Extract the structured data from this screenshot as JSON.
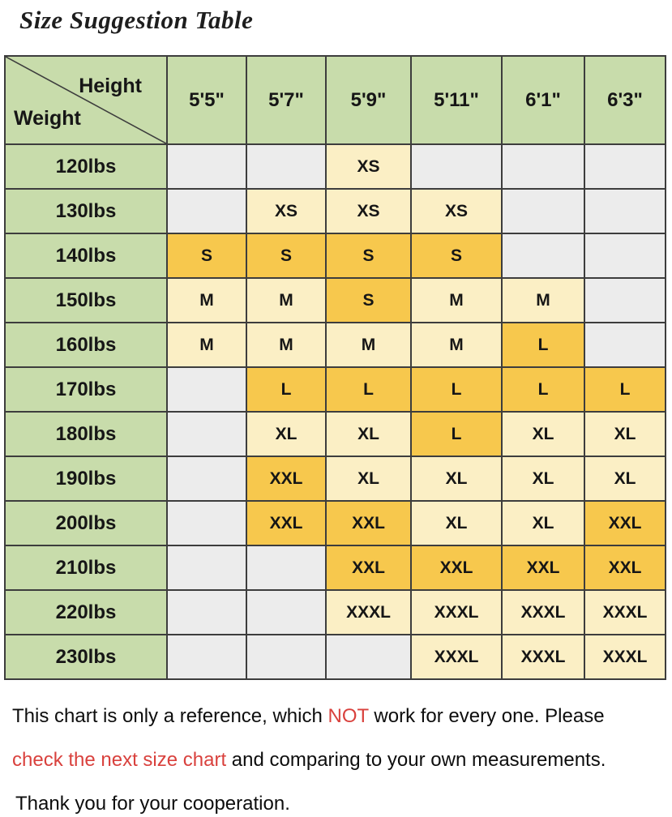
{
  "title": "Size Suggestion Table",
  "colors": {
    "header_green": "#c8dcab",
    "empty_gray": "#ececec",
    "size_cream": "#fbefc5",
    "highlight_gold": "#f7c84d",
    "grid_border": "#3d3d3d",
    "emphasis_red": "#d9413d"
  },
  "table": {
    "corner": {
      "height_label": "Height",
      "weight_label": "Weight"
    },
    "columns": [
      "5'5\"",
      "5'7\"",
      "5'9\"",
      "5'11\"",
      "6'1\"",
      "6'3\""
    ],
    "rows": [
      {
        "weight": "120lbs",
        "cells": [
          {
            "size": "",
            "fill": "empty"
          },
          {
            "size": "",
            "fill": "empty"
          },
          {
            "size": "XS",
            "fill": "cream"
          },
          {
            "size": "",
            "fill": "empty"
          },
          {
            "size": "",
            "fill": "empty"
          },
          {
            "size": "",
            "fill": "empty"
          }
        ]
      },
      {
        "weight": "130lbs",
        "cells": [
          {
            "size": "",
            "fill": "empty"
          },
          {
            "size": "XS",
            "fill": "cream"
          },
          {
            "size": "XS",
            "fill": "cream"
          },
          {
            "size": "XS",
            "fill": "cream"
          },
          {
            "size": "",
            "fill": "empty"
          },
          {
            "size": "",
            "fill": "empty"
          }
        ]
      },
      {
        "weight": "140lbs",
        "cells": [
          {
            "size": "S",
            "fill": "gold"
          },
          {
            "size": "S",
            "fill": "gold"
          },
          {
            "size": "S",
            "fill": "gold"
          },
          {
            "size": "S",
            "fill": "gold"
          },
          {
            "size": "",
            "fill": "empty"
          },
          {
            "size": "",
            "fill": "empty"
          }
        ]
      },
      {
        "weight": "150lbs",
        "cells": [
          {
            "size": "M",
            "fill": "cream"
          },
          {
            "size": "M",
            "fill": "cream"
          },
          {
            "size": "S",
            "fill": "gold"
          },
          {
            "size": "M",
            "fill": "cream"
          },
          {
            "size": "M",
            "fill": "cream"
          },
          {
            "size": "",
            "fill": "empty"
          }
        ]
      },
      {
        "weight": "160lbs",
        "cells": [
          {
            "size": "M",
            "fill": "cream"
          },
          {
            "size": "M",
            "fill": "cream"
          },
          {
            "size": "M",
            "fill": "cream"
          },
          {
            "size": "M",
            "fill": "cream"
          },
          {
            "size": "L",
            "fill": "gold"
          },
          {
            "size": "",
            "fill": "empty"
          }
        ]
      },
      {
        "weight": "170lbs",
        "cells": [
          {
            "size": "",
            "fill": "empty"
          },
          {
            "size": "L",
            "fill": "gold"
          },
          {
            "size": "L",
            "fill": "gold"
          },
          {
            "size": "L",
            "fill": "gold"
          },
          {
            "size": "L",
            "fill": "gold"
          },
          {
            "size": "L",
            "fill": "gold"
          }
        ]
      },
      {
        "weight": "180lbs",
        "cells": [
          {
            "size": "",
            "fill": "empty"
          },
          {
            "size": "XL",
            "fill": "cream"
          },
          {
            "size": "XL",
            "fill": "cream"
          },
          {
            "size": "L",
            "fill": "gold"
          },
          {
            "size": "XL",
            "fill": "cream"
          },
          {
            "size": "XL",
            "fill": "cream"
          }
        ]
      },
      {
        "weight": "190lbs",
        "cells": [
          {
            "size": "",
            "fill": "empty"
          },
          {
            "size": "XXL",
            "fill": "gold"
          },
          {
            "size": "XL",
            "fill": "cream"
          },
          {
            "size": "XL",
            "fill": "cream"
          },
          {
            "size": "XL",
            "fill": "cream"
          },
          {
            "size": "XL",
            "fill": "cream"
          }
        ]
      },
      {
        "weight": "200lbs",
        "cells": [
          {
            "size": "",
            "fill": "empty"
          },
          {
            "size": "XXL",
            "fill": "gold"
          },
          {
            "size": "XXL",
            "fill": "gold"
          },
          {
            "size": "XL",
            "fill": "cream"
          },
          {
            "size": "XL",
            "fill": "cream"
          },
          {
            "size": "XXL",
            "fill": "gold"
          }
        ]
      },
      {
        "weight": "210lbs",
        "cells": [
          {
            "size": "",
            "fill": "empty"
          },
          {
            "size": "",
            "fill": "empty"
          },
          {
            "size": "XXL",
            "fill": "gold"
          },
          {
            "size": "XXL",
            "fill": "gold"
          },
          {
            "size": "XXL",
            "fill": "gold"
          },
          {
            "size": "XXL",
            "fill": "gold"
          }
        ]
      },
      {
        "weight": "220lbs",
        "cells": [
          {
            "size": "",
            "fill": "empty"
          },
          {
            "size": "",
            "fill": "empty"
          },
          {
            "size": "XXXL",
            "fill": "cream"
          },
          {
            "size": "XXXL",
            "fill": "cream"
          },
          {
            "size": "XXXL",
            "fill": "cream"
          },
          {
            "size": "XXXL",
            "fill": "cream"
          }
        ]
      },
      {
        "weight": "230lbs",
        "cells": [
          {
            "size": "",
            "fill": "empty"
          },
          {
            "size": "",
            "fill": "empty"
          },
          {
            "size": "",
            "fill": "empty"
          },
          {
            "size": "XXXL",
            "fill": "cream"
          },
          {
            "size": "XXXL",
            "fill": "cream"
          },
          {
            "size": "XXXL",
            "fill": "cream"
          }
        ]
      }
    ]
  },
  "footer": {
    "lines": [
      [
        {
          "text": "This chart is only a reference, which ",
          "color": "black"
        },
        {
          "text": "NOT",
          "color": "red"
        },
        {
          "text": " work for every one. Please",
          "color": "black"
        }
      ],
      [
        {
          "text": "check the next size chart",
          "color": "red"
        },
        {
          "text": " and comparing to your own measurements.",
          "color": "black"
        }
      ],
      [
        {
          "text": "Thank you for your cooperation.",
          "color": "black"
        }
      ]
    ]
  },
  "chart_data": {
    "type": "table",
    "title": "Size Suggestion Table",
    "columns": [
      "5'5\"",
      "5'7\"",
      "5'9\"",
      "5'11\"",
      "6'1\"",
      "6'3\""
    ],
    "row_labels": [
      "120lbs",
      "130lbs",
      "140lbs",
      "150lbs",
      "160lbs",
      "170lbs",
      "180lbs",
      "190lbs",
      "200lbs",
      "210lbs",
      "220lbs",
      "230lbs"
    ],
    "matrix": [
      [
        "",
        "",
        "XS",
        "",
        "",
        ""
      ],
      [
        "",
        "XS",
        "XS",
        "XS",
        "",
        ""
      ],
      [
        "S",
        "S",
        "S",
        "S",
        "",
        ""
      ],
      [
        "M",
        "M",
        "S",
        "M",
        "M",
        ""
      ],
      [
        "M",
        "M",
        "M",
        "M",
        "L",
        ""
      ],
      [
        "",
        "L",
        "L",
        "L",
        "L",
        "L"
      ],
      [
        "",
        "XL",
        "XL",
        "L",
        "XL",
        "XL"
      ],
      [
        "",
        "XXL",
        "XL",
        "XL",
        "XL",
        "XL"
      ],
      [
        "",
        "XXL",
        "XXL",
        "XL",
        "XL",
        "XXL"
      ],
      [
        "",
        "",
        "XXL",
        "XXL",
        "XXL",
        "XXL"
      ],
      [
        "",
        "",
        "XXXL",
        "XXXL",
        "XXXL",
        "XXXL"
      ],
      [
        "",
        "",
        "",
        "XXXL",
        "XXXL",
        "XXXL"
      ]
    ],
    "legend": "gold cells = strongly highlighted size, cream cells = suggested size, gray cells = no suggestion"
  }
}
